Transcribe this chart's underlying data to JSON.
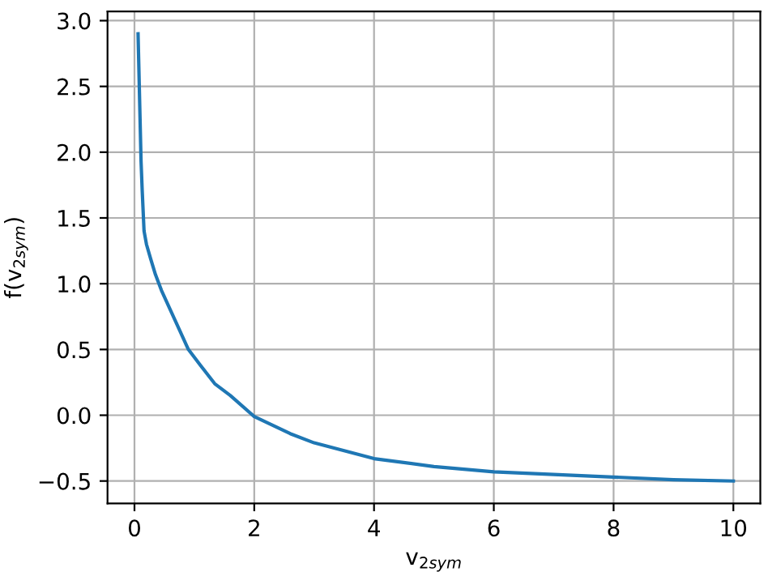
{
  "chart_data": {
    "type": "line",
    "xlabel": "v$_{2sym}$",
    "ylabel": "f(v$_{2sym}$)",
    "series": [
      {
        "color": "#1f77b4",
        "x": [
          0.06,
          0.11,
          0.13,
          0.16,
          0.2,
          0.27,
          0.35,
          0.45,
          0.7,
          0.9,
          1.1,
          1.34,
          1.6,
          2.0,
          2.6,
          3.0,
          3.5,
          4.0,
          5.0,
          6.0,
          7.0,
          8.0,
          9.0,
          10.0
        ],
        "values": [
          2.9,
          1.93,
          1.7,
          1.4,
          1.3,
          1.19,
          1.07,
          0.95,
          0.7,
          0.5,
          0.38,
          0.24,
          0.15,
          -0.01,
          -0.14,
          -0.21,
          -0.27,
          -0.33,
          -0.39,
          -0.43,
          -0.45,
          -0.47,
          -0.49,
          -0.5
        ]
      }
    ],
    "xlim": [
      -0.45,
      10.45
    ],
    "ylim": [
      -0.67,
      3.07
    ],
    "xticks": [
      0,
      2,
      4,
      6,
      8,
      10
    ],
    "yticks": [
      {
        "value": -0.5,
        "label": "−0.5"
      },
      {
        "value": 0,
        "label": "0.0"
      },
      0.5,
      {
        "value": 1,
        "label": "1.0"
      },
      1.5,
      {
        "value": 2,
        "label": "2.0"
      },
      2.5,
      {
        "value": 3,
        "label": "3.0"
      }
    ],
    "grid": true
  }
}
